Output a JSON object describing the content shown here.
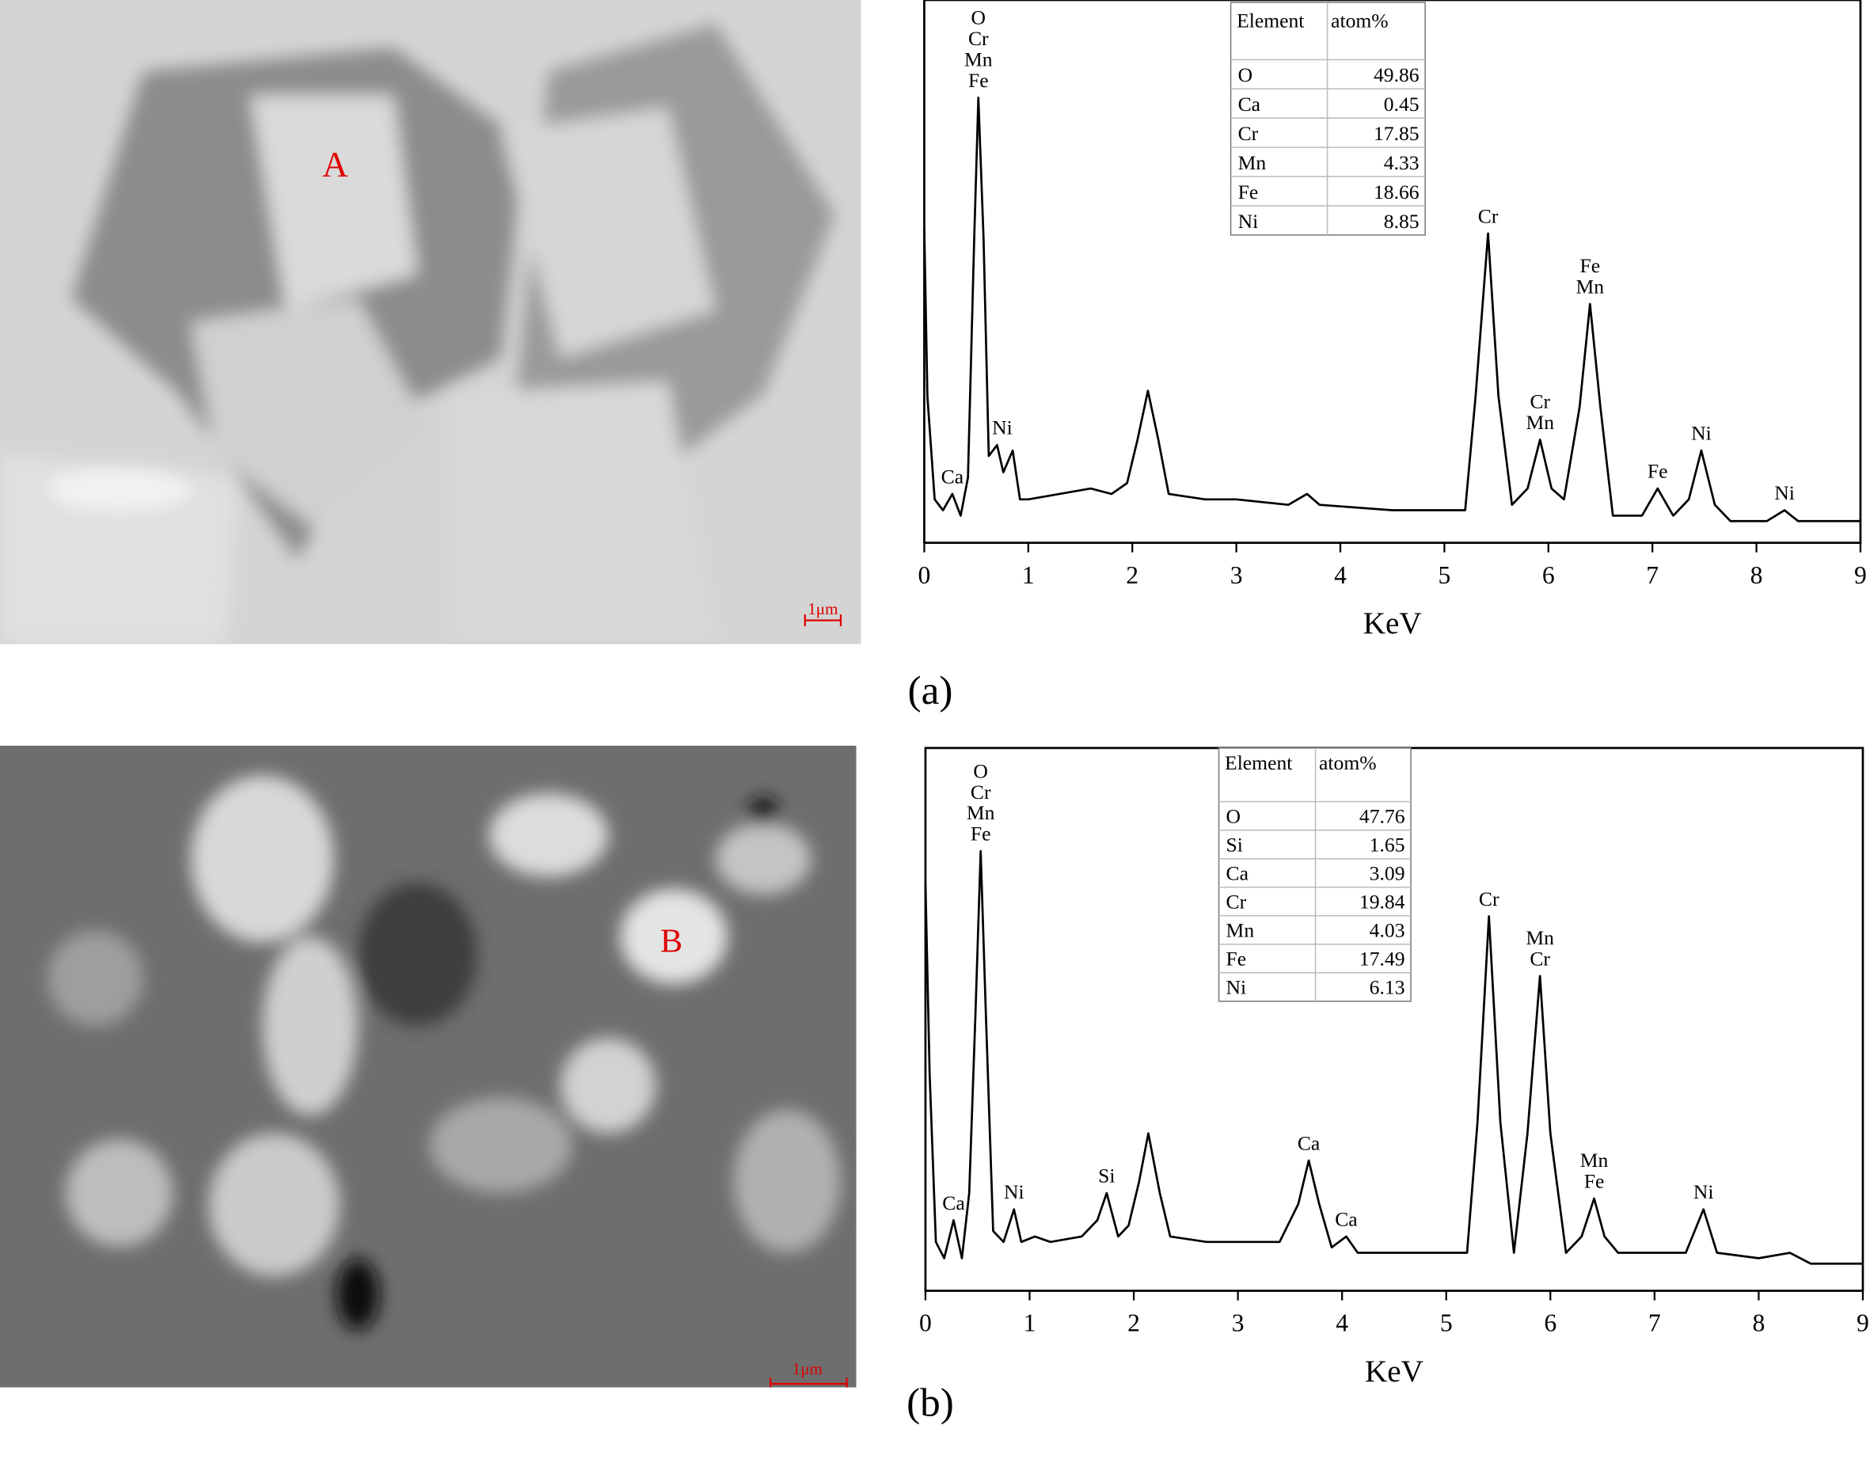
{
  "panels": [
    {
      "caption": "(a)",
      "marker": "A",
      "scale_bar": "1μm"
    },
    {
      "caption": "(b)",
      "marker": "B",
      "scale_bar": "1μm"
    }
  ],
  "chart_data": [
    {
      "type": "line",
      "xlabel": "KeV",
      "xlim": [
        0,
        9
      ],
      "xticks": [
        0,
        1,
        2,
        3,
        4,
        5,
        6,
        7,
        8,
        9
      ],
      "ylim": [
        0,
        100
      ],
      "color": "#000000",
      "x": [
        0,
        0.03,
        0.1,
        0.18,
        0.27,
        0.35,
        0.42,
        0.48,
        0.52,
        0.57,
        0.62,
        0.7,
        0.76,
        0.85,
        0.92,
        1.0,
        1.3,
        1.6,
        1.8,
        1.95,
        2.05,
        2.15,
        2.25,
        2.35,
        2.7,
        3.0,
        3.5,
        3.68,
        3.8,
        4.5,
        5.0,
        5.2,
        5.3,
        5.42,
        5.52,
        5.65,
        5.8,
        5.92,
        6.03,
        6.15,
        6.3,
        6.4,
        6.5,
        6.62,
        6.9,
        7.05,
        7.2,
        7.35,
        7.47,
        7.6,
        7.75,
        8.1,
        8.27,
        8.4,
        9.0
      ],
      "values": [
        58,
        27,
        8,
        6,
        9,
        5,
        12,
        56,
        82,
        56,
        16,
        18,
        13,
        17,
        8,
        8,
        9,
        10,
        9,
        11,
        19,
        28,
        19,
        9,
        8,
        8,
        7,
        9,
        7,
        6,
        6,
        6,
        27,
        57,
        27,
        7,
        10,
        19,
        10,
        8,
        25,
        44,
        25,
        5,
        5,
        10,
        5,
        8,
        17,
        7,
        4,
        4,
        6,
        4,
        4
      ],
      "annotations": [
        {
          "lines": [
            "O",
            "Cr",
            "Mn",
            "Fe"
          ],
          "x": 0.52
        },
        {
          "lines": [
            "Ca"
          ],
          "x": 0.27
        },
        {
          "lines": [
            "Ni"
          ],
          "x": 0.75
        },
        {
          "lines": [
            "Cr"
          ],
          "x": 5.42
        },
        {
          "lines": [
            "Cr",
            "Mn"
          ],
          "x": 5.92
        },
        {
          "lines": [
            "Fe",
            "Mn"
          ],
          "x": 6.4
        },
        {
          "lines": [
            "Fe"
          ],
          "x": 7.05
        },
        {
          "lines": [
            "Ni"
          ],
          "x": 7.47
        },
        {
          "lines": [
            "Ni"
          ],
          "x": 8.27
        }
      ],
      "table": {
        "header": [
          "Element",
          "atom%"
        ],
        "rows": [
          [
            "O",
            49.86
          ],
          [
            "Ca",
            0.45
          ],
          [
            "Cr",
            17.85
          ],
          [
            "Mn",
            4.33
          ],
          [
            "Fe",
            18.66
          ],
          [
            "Ni",
            8.85
          ]
        ]
      }
    },
    {
      "type": "line",
      "xlabel": "KeV",
      "xlim": [
        0,
        9
      ],
      "xticks": [
        0,
        1,
        2,
        3,
        4,
        5,
        6,
        7,
        8,
        9
      ],
      "ylim": [
        0,
        100
      ],
      "color": "#000000",
      "x": [
        0,
        0.04,
        0.1,
        0.18,
        0.27,
        0.35,
        0.42,
        0.48,
        0.53,
        0.58,
        0.65,
        0.75,
        0.85,
        0.92,
        1.05,
        1.2,
        1.5,
        1.65,
        1.74,
        1.85,
        1.95,
        2.05,
        2.14,
        2.25,
        2.35,
        2.7,
        3.0,
        3.4,
        3.58,
        3.68,
        3.78,
        3.9,
        4.04,
        4.15,
        4.6,
        5.2,
        5.3,
        5.41,
        5.52,
        5.65,
        5.78,
        5.9,
        6.0,
        6.15,
        6.3,
        6.42,
        6.52,
        6.65,
        7.0,
        7.3,
        7.47,
        7.6,
        8.0,
        8.3,
        8.5,
        9.0
      ],
      "values": [
        75,
        40,
        9,
        6,
        13,
        6,
        18,
        51,
        81,
        51,
        11,
        9,
        15,
        9,
        10,
        9,
        10,
        13,
        18,
        10,
        12,
        20,
        29,
        18,
        10,
        9,
        9,
        9,
        16,
        24,
        16,
        8,
        10,
        7,
        7,
        7,
        31,
        69,
        31,
        7,
        29,
        58,
        29,
        7,
        10,
        17,
        10,
        7,
        7,
        7,
        15,
        7,
        6,
        7,
        5,
        5
      ],
      "annotations": [
        {
          "lines": [
            "O",
            "Cr",
            "Mn",
            "Fe"
          ],
          "x": 0.53
        },
        {
          "lines": [
            "Ca"
          ],
          "x": 0.27
        },
        {
          "lines": [
            "Ni"
          ],
          "x": 0.85
        },
        {
          "lines": [
            "Si"
          ],
          "x": 1.74
        },
        {
          "lines": [
            "Ca"
          ],
          "x": 3.68
        },
        {
          "lines": [
            "Ca"
          ],
          "x": 4.04
        },
        {
          "lines": [
            "Cr"
          ],
          "x": 5.41
        },
        {
          "lines": [
            "Mn",
            "Cr"
          ],
          "x": 5.9
        },
        {
          "lines": [
            "Mn",
            "Fe"
          ],
          "x": 6.42
        },
        {
          "lines": [
            "Ni"
          ],
          "x": 7.47
        }
      ],
      "table": {
        "header": [
          "Element",
          "atom%"
        ],
        "rows": [
          [
            "O",
            47.76
          ],
          [
            "Si",
            1.65
          ],
          [
            "Ca",
            3.09
          ],
          [
            "Cr",
            19.84
          ],
          [
            "Mn",
            4.03
          ],
          [
            "Fe",
            17.49
          ],
          [
            "Ni",
            6.13
          ]
        ]
      }
    }
  ]
}
